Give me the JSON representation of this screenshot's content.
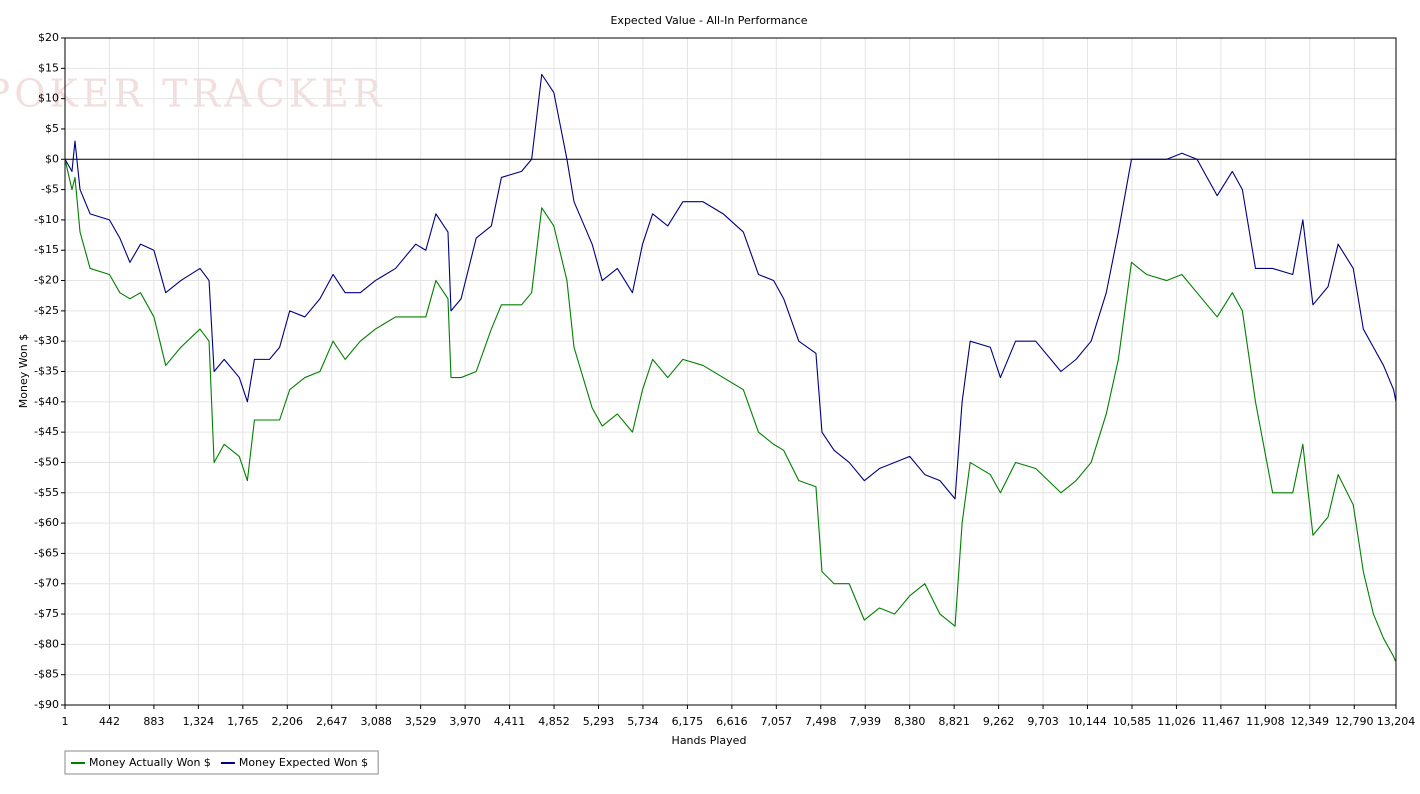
{
  "chart_data": {
    "type": "line",
    "title": "Expected Value - All-In Performance",
    "watermark": "POKER TRACKER",
    "x_label": "Hands Played",
    "y_label": "Money Won $",
    "xlim": [
      1,
      13204
    ],
    "ylim": [
      -90,
      20
    ],
    "grid": true,
    "legend": "bottom-left",
    "zero_line": true,
    "xticks": [
      1,
      442,
      883,
      {
        "value": 1324,
        "label": "1,324"
      },
      {
        "value": 1765,
        "label": "1,765"
      },
      {
        "value": 2206,
        "label": "2,206"
      },
      {
        "value": 2647,
        "label": "2,647"
      },
      {
        "value": 3088,
        "label": "3,088"
      },
      {
        "value": 3529,
        "label": "3,529"
      },
      {
        "value": 3970,
        "label": "3,970"
      },
      {
        "value": 4411,
        "label": "4,411"
      },
      {
        "value": 4852,
        "label": "4,852"
      },
      {
        "value": 5293,
        "label": "5,293"
      },
      {
        "value": 5734,
        "label": "5,734"
      },
      {
        "value": 6175,
        "label": "6,175"
      },
      {
        "value": 6616,
        "label": "6,616"
      },
      {
        "value": 7057,
        "label": "7,057"
      },
      {
        "value": 7498,
        "label": "7,498"
      },
      {
        "value": 7939,
        "label": "7,939"
      },
      {
        "value": 8380,
        "label": "8,380"
      },
      {
        "value": 8821,
        "label": "8,821"
      },
      {
        "value": 9262,
        "label": "9,262"
      },
      {
        "value": 9703,
        "label": "9,703"
      },
      {
        "value": 10144,
        "label": "10,144"
      },
      {
        "value": 10585,
        "label": "10,585"
      },
      {
        "value": 11026,
        "label": "11,026"
      },
      {
        "value": 11467,
        "label": "11,467"
      },
      {
        "value": 11908,
        "label": "11,908"
      },
      {
        "value": 12349,
        "label": "12,349"
      },
      {
        "value": 12790,
        "label": "12,790"
      },
      {
        "value": 13204,
        "label": "13,204"
      }
    ],
    "yticks": [
      {
        "value": 20,
        "label": "$20"
      },
      {
        "value": 15,
        "label": "$15"
      },
      {
        "value": 10,
        "label": "$10"
      },
      {
        "value": 5,
        "label": "$5"
      },
      {
        "value": 0,
        "label": "$0"
      },
      {
        "value": -5,
        "label": "-$5"
      },
      {
        "value": -10,
        "label": "-$10"
      },
      {
        "value": -15,
        "label": "-$15"
      },
      {
        "value": -20,
        "label": "-$20"
      },
      {
        "value": -25,
        "label": "-$25"
      },
      {
        "value": -30,
        "label": "-$30"
      },
      {
        "value": -35,
        "label": "-$35"
      },
      {
        "value": -40,
        "label": "-$40"
      },
      {
        "value": -45,
        "label": "-$45"
      },
      {
        "value": -50,
        "label": "-$50"
      },
      {
        "value": -55,
        "label": "-$55"
      },
      {
        "value": -60,
        "label": "-$60"
      },
      {
        "value": -65,
        "label": "-$65"
      },
      {
        "value": -70,
        "label": "-$70"
      },
      {
        "value": -75,
        "label": "-$75"
      },
      {
        "value": -80,
        "label": "-$80"
      },
      {
        "value": -85,
        "label": "-$85"
      },
      {
        "value": -90,
        "label": "-$90"
      }
    ],
    "x": [
      1,
      70,
      100,
      150,
      250,
      442,
      545,
      645,
      750,
      883,
      1000,
      1150,
      1340,
      1430,
      1480,
      1580,
      1730,
      1810,
      1880,
      2030,
      2130,
      2230,
      2380,
      2530,
      2660,
      2780,
      2930,
      3080,
      3280,
      3480,
      3580,
      3680,
      3800,
      3830,
      3930,
      4080,
      4230,
      4330,
      4530,
      4630,
      4730,
      4850,
      4980,
      5050,
      5230,
      5330,
      5480,
      5630,
      5730,
      5830,
      5980,
      6130,
      6330,
      6530,
      6730,
      6880,
      7030,
      7130,
      7280,
      7450,
      7510,
      7630,
      7780,
      7930,
      8080,
      8230,
      8380,
      8530,
      8680,
      8830,
      8900,
      8980,
      9180,
      9280,
      9430,
      9630,
      9880,
      10030,
      10180,
      10330,
      10450,
      10580,
      10730,
      10930,
      11080,
      11230,
      11330,
      11430,
      11580,
      11680,
      11810,
      11980,
      12180,
      12280,
      12380,
      12530,
      12630,
      12780,
      12880,
      12980,
      13080,
      13180,
      13204
    ],
    "series": [
      {
        "name": "Money Actually Won $",
        "color": "#008000",
        "values": [
          0,
          -5,
          -3,
          -12,
          -18,
          -19,
          -22,
          -23,
          -22,
          -26,
          -34,
          -31,
          -28,
          -30,
          -50,
          -47,
          -49,
          -53,
          -43,
          -43,
          -43,
          -38,
          -36,
          -35,
          -30,
          -33,
          -30,
          -28,
          -26,
          -26,
          -26,
          -20,
          -23,
          -36,
          -36,
          -35,
          -28,
          -24,
          -24,
          -22,
          -8,
          -11,
          -20,
          -31,
          -41,
          -44,
          -42,
          -45,
          -38,
          -33,
          -36,
          -33,
          -34,
          -36,
          -38,
          -45,
          -47,
          -48,
          -53,
          -54,
          -68,
          -70,
          -70,
          -76,
          -74,
          -75,
          -72,
          -70,
          -75,
          -77,
          -60,
          -50,
          -52,
          -55,
          -50,
          -51,
          -55,
          -53,
          -50,
          -42,
          -33,
          -17,
          -19,
          -20,
          -19,
          -22,
          -24,
          -26,
          -22,
          -25,
          -40,
          -55,
          -55,
          -47,
          -62,
          -59,
          -52,
          -57,
          -68,
          -75,
          -79,
          -82,
          -83
        ]
      },
      {
        "name": "Money Expected Won $",
        "color": "#000080",
        "values": [
          0,
          -2,
          3,
          -5,
          -9,
          -10,
          -13,
          -17,
          -14,
          -15,
          -22,
          -20,
          -18,
          -20,
          -35,
          -33,
          -36,
          -40,
          -33,
          -33,
          -31,
          -25,
          -26,
          -23,
          -19,
          -22,
          -22,
          -20,
          -18,
          -14,
          -15,
          -9,
          -12,
          -25,
          -23,
          -13,
          -11,
          -3,
          -2,
          0,
          14,
          11,
          0,
          -7,
          -14,
          -20,
          -18,
          -22,
          -14,
          -9,
          -11,
          -7,
          -7,
          -9,
          -12,
          -19,
          -20,
          -23,
          -30,
          -32,
          -45,
          -48,
          -50,
          -53,
          -51,
          -50,
          -49,
          -52,
          -53,
          -56,
          -40,
          -30,
          -31,
          -36,
          -30,
          -30,
          -35,
          -33,
          -30,
          -22,
          -12,
          0,
          0,
          0,
          1,
          0,
          -3,
          -6,
          -2,
          -5,
          -18,
          -18,
          -19,
          -10,
          -24,
          -21,
          -14,
          -18,
          -28,
          -31,
          -34,
          -38,
          -40
        ]
      }
    ]
  }
}
